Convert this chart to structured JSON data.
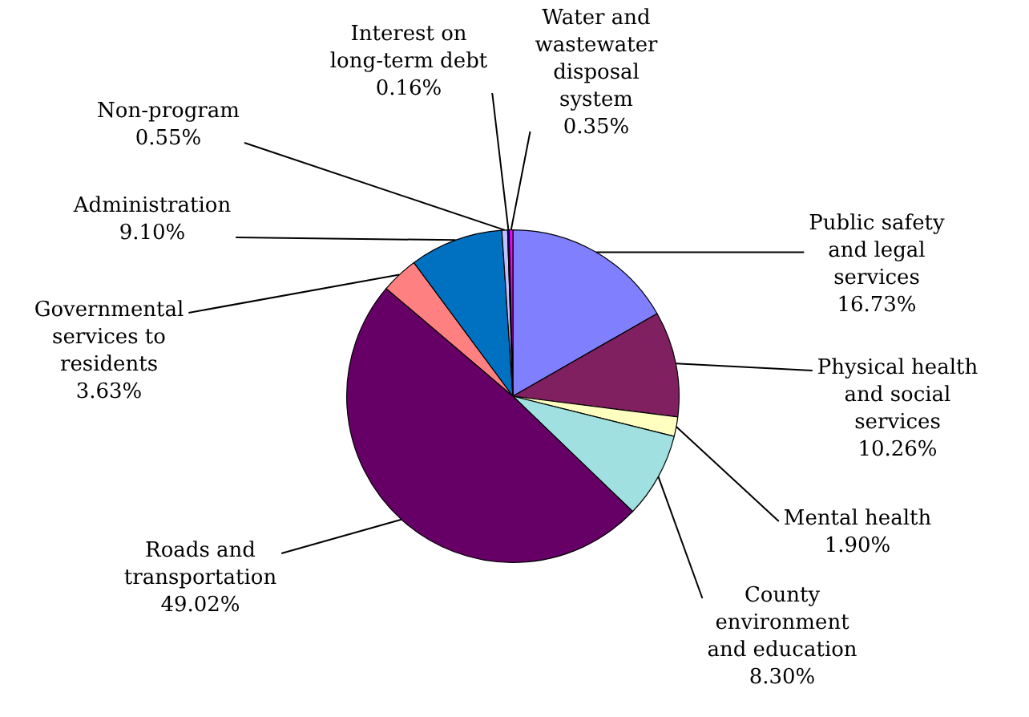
{
  "chart_data": {
    "type": "pie",
    "categories": [
      "Public safety and legal services",
      "Physical health and social services",
      "Mental health",
      "County environment and education",
      "Roads and transportation",
      "Governmental services to residents",
      "Administration",
      "Non-program",
      "Interest on long-term debt",
      "Water and wastewater disposal system"
    ],
    "values": [
      16.73,
      10.26,
      1.9,
      8.3,
      49.02,
      3.63,
      9.1,
      0.55,
      0.16,
      0.35
    ],
    "value_labels": [
      "16.73%",
      "10.26%",
      "1.90%",
      "8.30%",
      "49.02%",
      "3.63%",
      "9.10%",
      "0.55%",
      "0.16%",
      "0.35%"
    ],
    "colors": [
      "#8080ff",
      "#802060",
      "#ffffc0",
      "#a0e0e0",
      "#660066",
      "#ff8080",
      "#0070c0",
      "#c0c0ff",
      "#000080",
      "#ff00ff"
    ],
    "legend": false
  }
}
